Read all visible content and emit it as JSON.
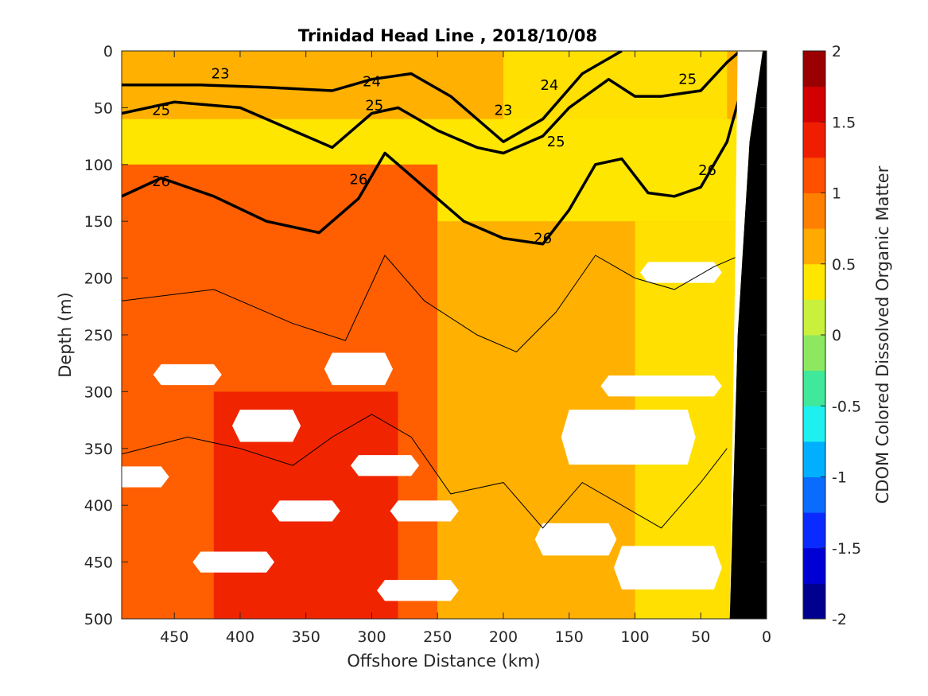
{
  "chart_data": {
    "type": "heatmap",
    "title": "Trinidad Head Line , 2018/10/08",
    "xlabel": "Offshore Distance (km)",
    "ylabel": "Depth (m)",
    "colorbar_label": "CDOM Colored Dissolved Organic Matter",
    "x_reversed": true,
    "xlim": [
      0,
      490
    ],
    "ylim": [
      0,
      500
    ],
    "y_reversed": true,
    "x_ticks": [
      "450",
      "400",
      "350",
      "300",
      "250",
      "200",
      "150",
      "100",
      "50",
      "0"
    ],
    "x_tick_values": [
      450,
      400,
      350,
      300,
      250,
      200,
      150,
      100,
      50,
      0
    ],
    "y_ticks": [
      "0",
      "50",
      "100",
      "150",
      "200",
      "250",
      "300",
      "350",
      "400",
      "450",
      "500"
    ],
    "y_tick_values": [
      0,
      50,
      100,
      150,
      200,
      250,
      300,
      350,
      400,
      450,
      500
    ],
    "color_range": [
      -2,
      2
    ],
    "colorbar_ticks": [
      "2",
      "1.5",
      "1",
      "0.5",
      "0",
      "-0.5",
      "-1",
      "-1.5",
      "-2"
    ],
    "colorbar_tick_values": [
      2,
      1.5,
      1,
      0.5,
      0,
      -0.5,
      -1,
      -1.5,
      -2
    ],
    "colormap_levels": [
      "#00008f",
      "#0000d4",
      "#0a2bff",
      "#0a6bff",
      "#00b0ff",
      "#1ef0f0",
      "#3fe89a",
      "#8de860",
      "#c8f03c",
      "#ffe600",
      "#ffaa00",
      "#ff8000",
      "#ff5000",
      "#f01e00",
      "#d20000",
      "#9a0000"
    ],
    "background_field": {
      "regions": [
        {
          "value": 0.7,
          "depth_range": [
            0,
            60
          ],
          "note_value_near_surface": 0.7
        },
        {
          "value": 0.3,
          "x_range_km": [
            30,
            200
          ],
          "depth_range": [
            0,
            120
          ]
        },
        {
          "value": 1.1,
          "x_range_km": [
            250,
            490
          ],
          "depth_range": [
            100,
            500
          ]
        },
        {
          "value": 1.3,
          "x_range_km": [
            280,
            420
          ],
          "depth_range": [
            300,
            500
          ]
        },
        {
          "value": 0.7,
          "x_range_km": [
            0,
            250
          ],
          "depth_range": [
            150,
            500
          ]
        },
        {
          "value": 0.3,
          "x_range_km": [
            20,
            100
          ],
          "depth_range": [
            150,
            500
          ]
        }
      ]
    },
    "contour_labels": [
      {
        "label": "23",
        "x": 415,
        "y": 20
      },
      {
        "label": "24",
        "x": 300,
        "y": 27
      },
      {
        "label": "23",
        "x": 200,
        "y": 52
      },
      {
        "label": "24",
        "x": 165,
        "y": 30
      },
      {
        "label": "25",
        "x": 60,
        "y": 25
      },
      {
        "label": "25",
        "x": 460,
        "y": 52
      },
      {
        "label": "25",
        "x": 298,
        "y": 48
      },
      {
        "label": "25",
        "x": 160,
        "y": 80
      },
      {
        "label": "26",
        "x": 460,
        "y": 115
      },
      {
        "label": "26",
        "x": 310,
        "y": 113
      },
      {
        "label": "26",
        "x": 170,
        "y": 165
      },
      {
        "label": "26",
        "x": 45,
        "y": 105
      }
    ],
    "isopycnals_major": [
      {
        "value": 24,
        "x": [
          490,
          430,
          380,
          330,
          300,
          270,
          240,
          200,
          170,
          140,
          110
        ],
        "y": [
          30,
          30,
          32,
          35,
          25,
          20,
          40,
          80,
          60,
          20,
          0
        ]
      },
      {
        "value": 25,
        "x": [
          490,
          450,
          400,
          360,
          330,
          300,
          280,
          250,
          220,
          200,
          170,
          150,
          120,
          100,
          80,
          50,
          30,
          20
        ],
        "y": [
          55,
          45,
          50,
          70,
          85,
          55,
          50,
          70,
          85,
          90,
          75,
          50,
          25,
          40,
          40,
          35,
          10,
          0
        ]
      },
      {
        "value": 26,
        "x": [
          490,
          460,
          420,
          380,
          340,
          310,
          290,
          260,
          230,
          200,
          170,
          150,
          130,
          110,
          90,
          70,
          50,
          30,
          20
        ],
        "y": [
          128,
          112,
          128,
          150,
          160,
          130,
          90,
          120,
          150,
          165,
          170,
          140,
          100,
          95,
          125,
          128,
          120,
          80,
          38
        ]
      }
    ],
    "isopycnals_minor_sample": [
      {
        "x": [
          490,
          420,
          360,
          320,
          290,
          260,
          220,
          190,
          160,
          130,
          100,
          70,
          40,
          20
        ],
        "y": [
          220,
          210,
          240,
          255,
          180,
          220,
          250,
          265,
          230,
          180,
          200,
          210,
          190,
          180
        ]
      },
      {
        "x": [
          490,
          440,
          400,
          360,
          330,
          300,
          270,
          240,
          200,
          170,
          140,
          110,
          80,
          50,
          30
        ],
        "y": [
          355,
          340,
          350,
          365,
          340,
          320,
          340,
          390,
          380,
          420,
          380,
          400,
          420,
          380,
          350
        ]
      }
    ],
    "white_gaps": [
      {
        "x": [
          460,
          420
        ],
        "y": [
          280,
          290
        ]
      },
      {
        "x": [
          400,
          360
        ],
        "y": [
          320,
          340
        ]
      },
      {
        "x": [
          370,
          330
        ],
        "y": [
          400,
          410
        ]
      },
      {
        "x": [
          430,
          380
        ],
        "y": [
          445,
          455
        ]
      },
      {
        "x": [
          330,
          290
        ],
        "y": [
          270,
          290
        ]
      },
      {
        "x": [
          310,
          270
        ],
        "y": [
          360,
          370
        ]
      },
      {
        "x": [
          290,
          240
        ],
        "y": [
          470,
          480
        ]
      },
      {
        "x": [
          280,
          240
        ],
        "y": [
          400,
          410
        ]
      },
      {
        "x": [
          170,
          120
        ],
        "y": [
          420,
          440
        ]
      },
      {
        "x": [
          150,
          60
        ],
        "y": [
          320,
          360
        ]
      },
      {
        "x": [
          120,
          40
        ],
        "y": [
          290,
          300
        ]
      },
      {
        "x": [
          90,
          40
        ],
        "y": [
          190,
          200
        ]
      },
      {
        "x": [
          110,
          40
        ],
        "y": [
          440,
          470
        ]
      },
      {
        "x": [
          490,
          460
        ],
        "y": [
          370,
          380
        ]
      }
    ],
    "land_mask": {
      "x": [
        0,
        28,
        20,
        10,
        0
      ],
      "y": [
        0,
        500,
        0,
        0,
        0
      ],
      "note": "black bottom wedge near shore"
    }
  }
}
